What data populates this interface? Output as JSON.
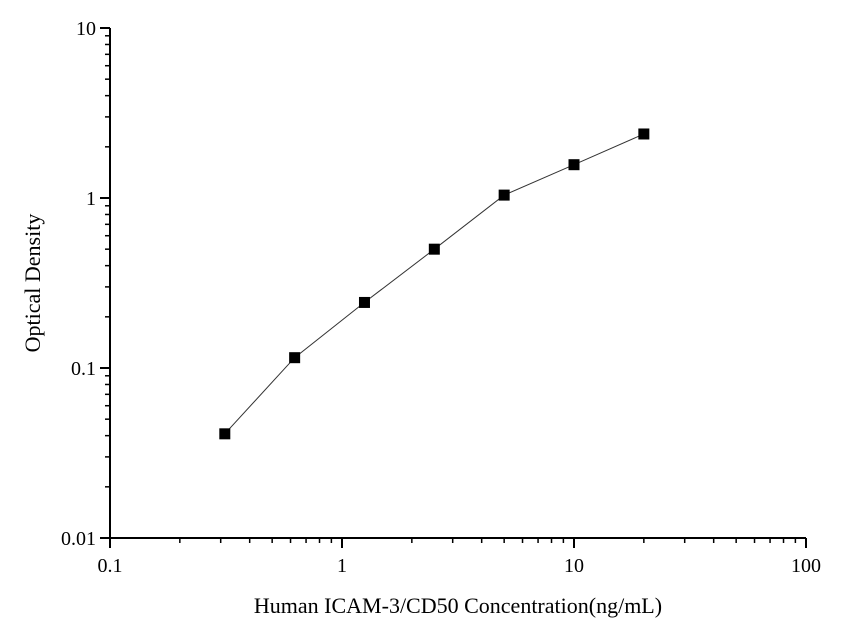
{
  "chart_data": {
    "type": "scatter",
    "title": "",
    "xlabel": "Human ICAM-3/CD50 Concentration(ng/mL)",
    "ylabel": "Optical Density",
    "xscale": "log",
    "yscale": "log",
    "xlim": [
      0.1,
      100
    ],
    "ylim": [
      0.01,
      10
    ],
    "x_ticks": [
      {
        "value": 0.1,
        "label": "0.1"
      },
      {
        "value": 1,
        "label": "1"
      },
      {
        "value": 10,
        "label": "10"
      },
      {
        "value": 100,
        "label": "100"
      }
    ],
    "y_ticks": [
      {
        "value": 0.01,
        "label": "0.01"
      },
      {
        "value": 0.1,
        "label": "0.1"
      },
      {
        "value": 1,
        "label": "1"
      },
      {
        "value": 10,
        "label": "10"
      }
    ],
    "grid": false,
    "marker": "square",
    "fit_line": true,
    "series": [
      {
        "x": [
          0.3125,
          0.625,
          1.25,
          2.5,
          5,
          10,
          20
        ],
        "y": [
          0.041,
          0.115,
          0.243,
          0.5,
          1.04,
          1.57,
          2.38
        ]
      }
    ]
  }
}
